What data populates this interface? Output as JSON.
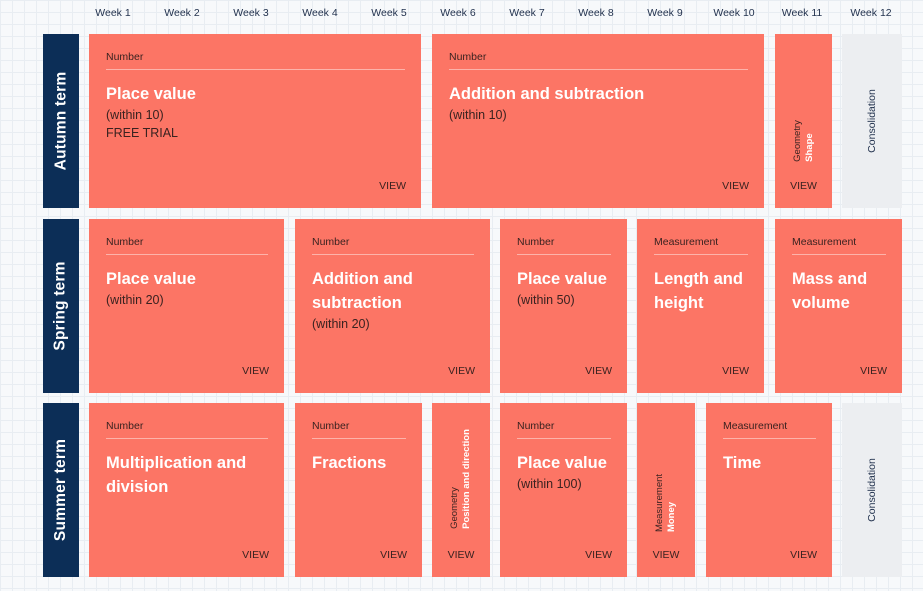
{
  "weeks": [
    "Week 1",
    "Week 2",
    "Week 3",
    "Week 4",
    "Week 5",
    "Week 6",
    "Week 7",
    "Week 8",
    "Week 9",
    "Week 10",
    "Week 11",
    "Week 12"
  ],
  "view_label": "VIEW",
  "consolidation_label": "Consolidation",
  "terms": {
    "autumn": {
      "label": "Autumn term",
      "place_value": {
        "category": "Number",
        "title": "Place value",
        "subtitle": "(within 10)",
        "note": "FREE TRIAL"
      },
      "add_sub": {
        "category": "Number",
        "title": "Addition and subtraction",
        "subtitle": "(within 10)"
      },
      "shape": {
        "category": "Geometry",
        "title": "Shape"
      }
    },
    "spring": {
      "label": "Spring term",
      "place_value": {
        "category": "Number",
        "title": "Place value",
        "subtitle": "(within 20)"
      },
      "add_sub": {
        "category": "Number",
        "title": "Addition and subtraction",
        "subtitle": "(within 20)"
      },
      "place_value_50": {
        "category": "Number",
        "title": "Place value",
        "subtitle": "(within 50)"
      },
      "length": {
        "category": "Measurement",
        "title": "Length and height"
      },
      "mass": {
        "category": "Measurement",
        "title": "Mass and volume"
      }
    },
    "summer": {
      "label": "Summer term",
      "mult_div": {
        "category": "Number",
        "title": "Multiplication and division"
      },
      "fractions": {
        "category": "Number",
        "title": "Fractions"
      },
      "position": {
        "category": "Geometry",
        "title": "Position and direction"
      },
      "place_value_100": {
        "category": "Number",
        "title": "Place value",
        "subtitle": "(within 100)"
      },
      "money": {
        "category": "Measurement",
        "title": "Money"
      },
      "time": {
        "category": "Measurement",
        "title": "Time"
      }
    }
  },
  "colors": {
    "card": "#fc7565",
    "term": "#0c2e57",
    "consolidation": "#eceef1"
  }
}
